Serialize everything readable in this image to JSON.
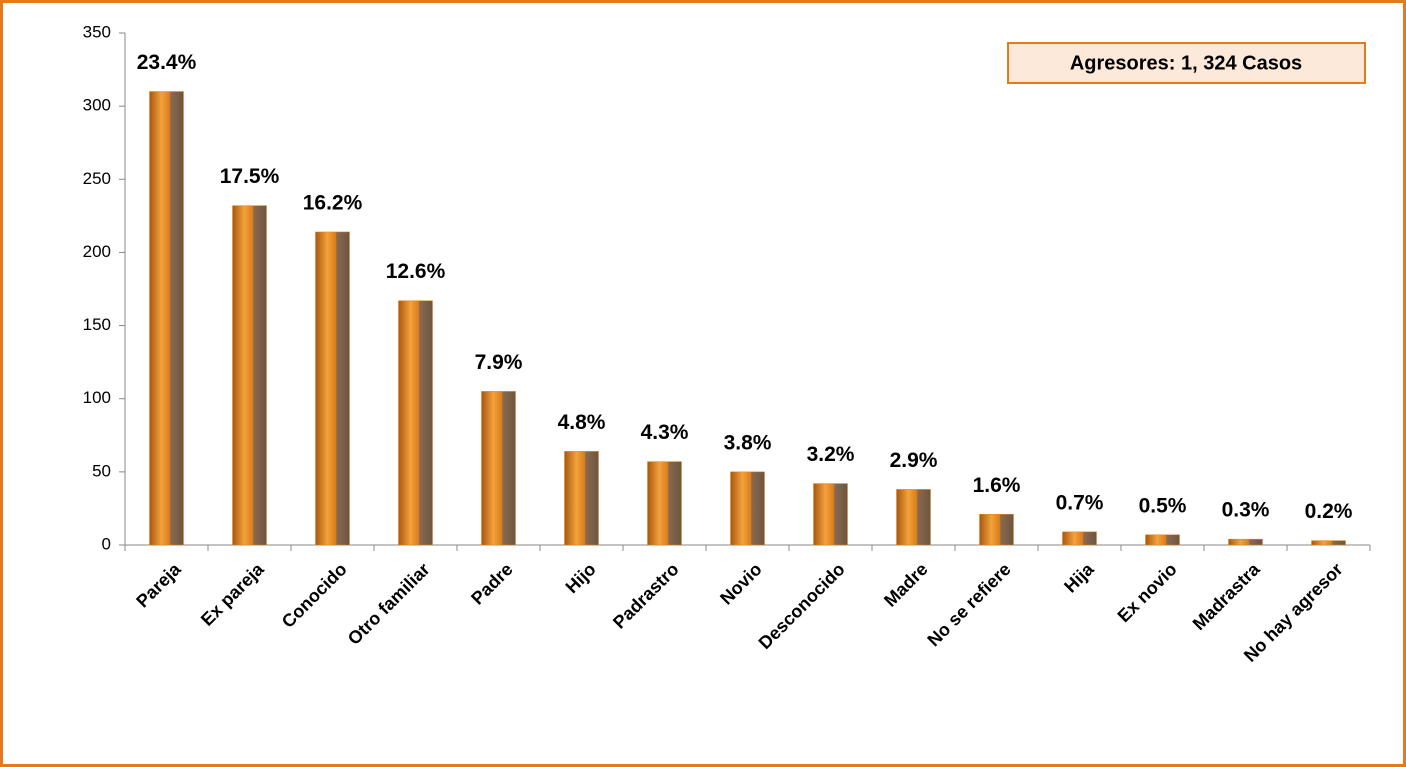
{
  "chart_data": {
    "type": "bar",
    "annotation": "Agresores: 1, 324 Casos",
    "categories": [
      "Pareja",
      "Ex pareja",
      "Conocido",
      "Otro familiar",
      "Padre",
      "Hijo",
      "Padrastro",
      "Novio",
      "Desconocido",
      "Madre",
      "No se refiere",
      "Hija",
      "Ex novio",
      "Madrastra",
      "No hay agresor"
    ],
    "values": [
      310,
      232,
      214,
      167,
      105,
      64,
      57,
      50,
      42,
      38,
      21,
      9,
      7,
      4,
      3
    ],
    "value_labels": [
      "23.4%",
      "17.5%",
      "16.2%",
      "12.6%",
      "7.9%",
      "4.8%",
      "4.3%",
      "3.8%",
      "3.2%",
      "2.9%",
      "1.6%",
      "0.7%",
      "0.5%",
      "0.3%",
      "0.2%"
    ],
    "color": "#e0861c",
    "ylim": [
      0,
      350
    ],
    "yticks": [
      0,
      50,
      100,
      150,
      200,
      250,
      300,
      350
    ],
    "grid": false
  }
}
